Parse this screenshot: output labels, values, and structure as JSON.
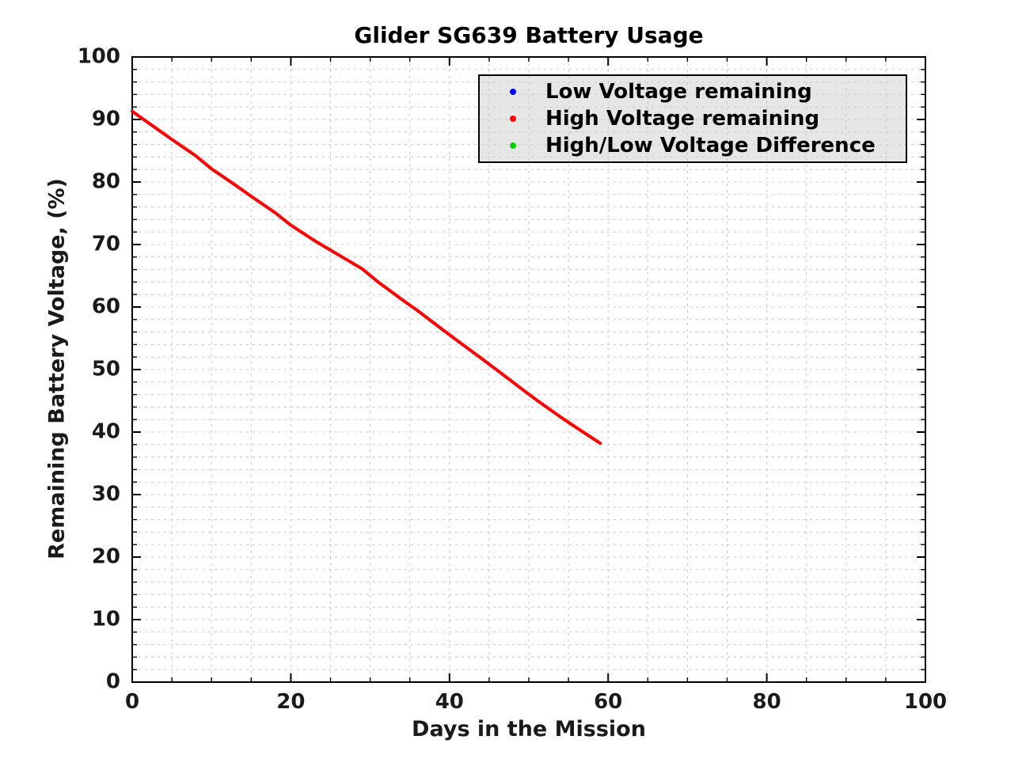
{
  "figure": {
    "background": "#ffffff",
    "text_color": "#1a1a1a"
  },
  "chart_data": {
    "type": "line",
    "title": "Glider SG639 Battery Usage",
    "xlabel": "Days in the Mission",
    "ylabel": "Remaining Battery Voltage, (%)",
    "xlim": [
      0,
      100
    ],
    "ylim": [
      0,
      100
    ],
    "x_major_ticks": [
      0,
      20,
      40,
      60,
      80,
      100
    ],
    "y_major_ticks": [
      0,
      10,
      20,
      30,
      40,
      50,
      60,
      70,
      80,
      90,
      100
    ],
    "x_minor_step": 5,
    "y_minor_step": 2,
    "grid": {
      "visible": true,
      "style": "dashed",
      "color": "#c8c8c8"
    },
    "axes": {
      "box": true,
      "spine_color": "#000000",
      "tick_direction": "in"
    },
    "legend": {
      "position": "upper-right",
      "background": "#e6e6e6",
      "border_color": "#000000",
      "entries": [
        {
          "label": "Low Voltage remaining",
          "color": "#0000ff",
          "marker": "dot"
        },
        {
          "label": "High Voltage remaining",
          "color": "#ff0000",
          "marker": "dot"
        },
        {
          "label": "High/Low Voltage Difference",
          "color": "#00cc00",
          "marker": "dot"
        }
      ]
    },
    "series": [
      {
        "name": "High Voltage remaining",
        "color": "#ff0000",
        "line_width": 4,
        "points": [
          [
            0,
            91.3
          ],
          [
            3,
            88.6
          ],
          [
            5,
            86.8
          ],
          [
            8,
            84.2
          ],
          [
            10,
            82.1
          ],
          [
            13,
            79.5
          ],
          [
            15,
            77.7
          ],
          [
            18,
            75.1
          ],
          [
            20,
            73.1
          ],
          [
            23,
            70.6
          ],
          [
            25,
            69.1
          ],
          [
            27,
            67.6
          ],
          [
            29,
            66.1
          ],
          [
            31,
            64.0
          ],
          [
            34,
            61.2
          ],
          [
            36,
            59.4
          ],
          [
            39,
            56.5
          ],
          [
            41,
            54.6
          ],
          [
            44,
            51.8
          ],
          [
            46,
            49.9
          ],
          [
            49,
            47.0
          ],
          [
            51,
            45.1
          ],
          [
            54,
            42.4
          ],
          [
            56,
            40.7
          ],
          [
            59,
            38.2
          ]
        ]
      }
    ]
  }
}
